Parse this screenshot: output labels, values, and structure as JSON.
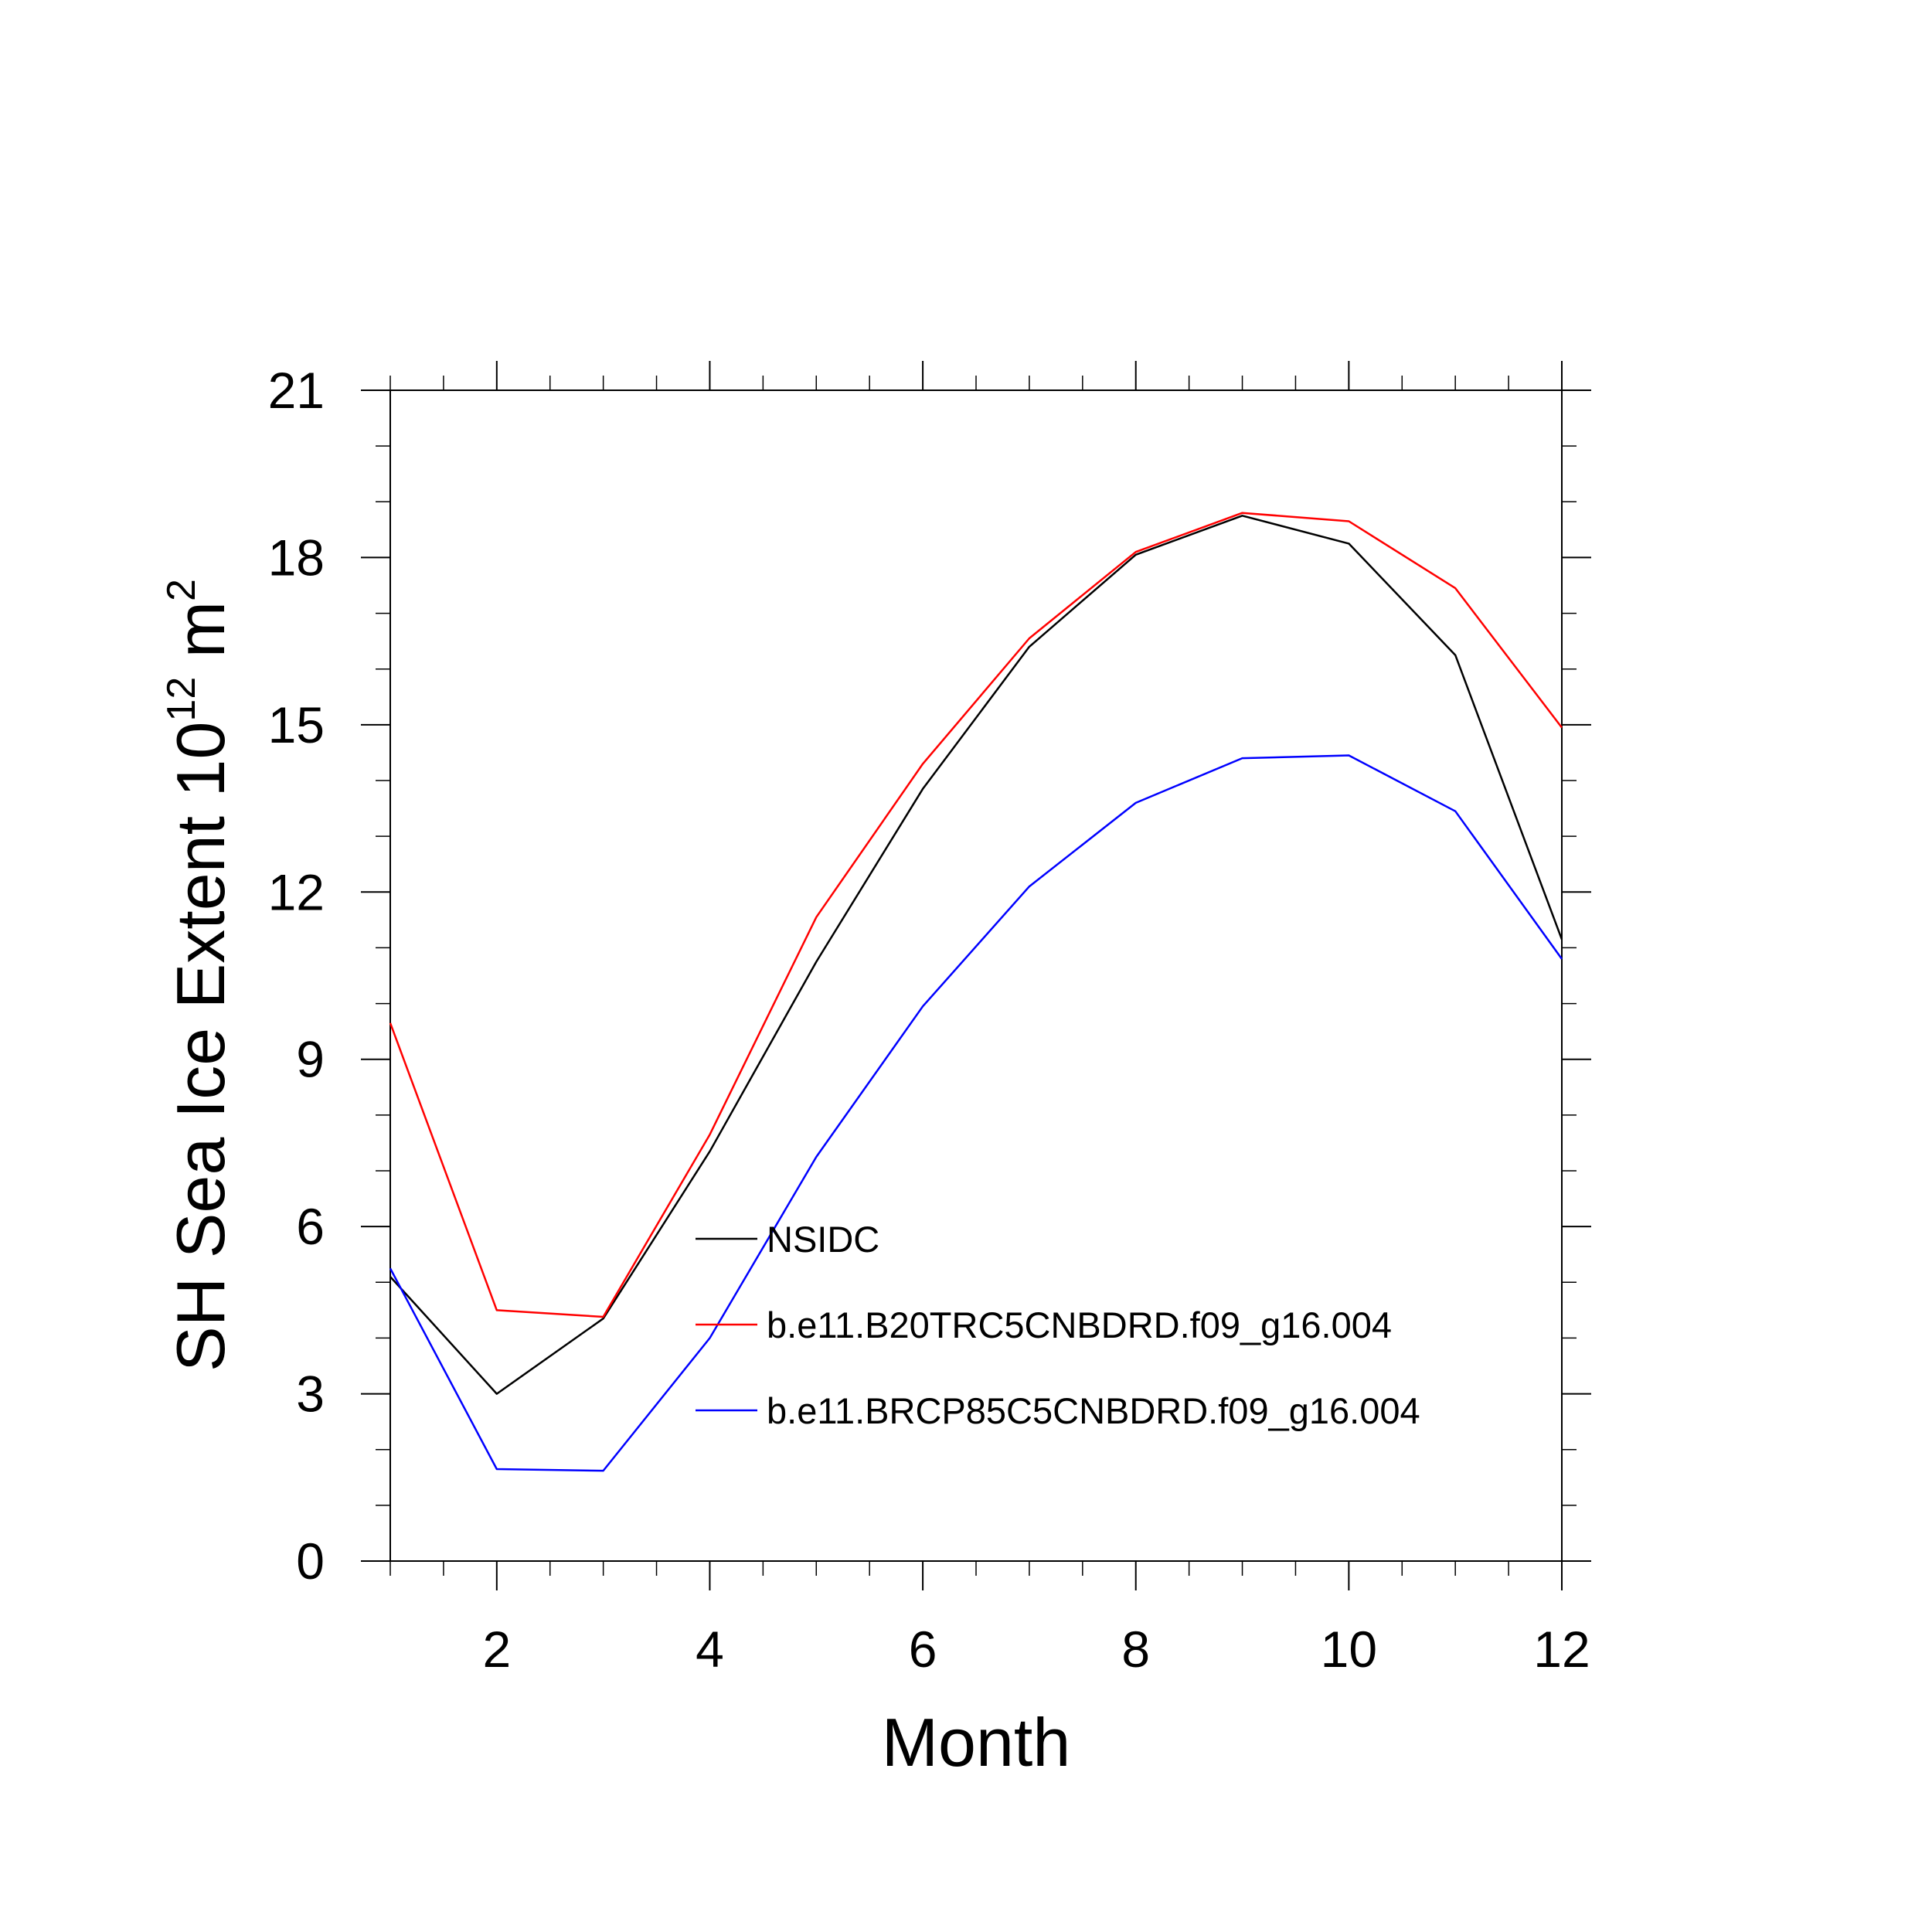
{
  "chart_data": {
    "type": "line",
    "title": "",
    "xlabel": "Month",
    "ylabel": "SH Sea Ice Extent 10",
    "ylabel_sup1": "12",
    "ylabel_unit": " m",
    "ylabel_sup2": "2",
    "xlim": [
      1,
      12
    ],
    "ylim": [
      0,
      21
    ],
    "xticks": [
      2,
      4,
      6,
      8,
      10,
      12
    ],
    "yticks": [
      0,
      3,
      6,
      9,
      12,
      15,
      18,
      21
    ],
    "x": [
      1,
      2,
      3,
      4,
      5,
      6,
      7,
      8,
      9,
      10,
      11,
      12
    ],
    "legend_position": "center",
    "series": [
      {
        "name": "NSIDC",
        "color": "#000000",
        "values": [
          5.1,
          3.0,
          4.35,
          7.35,
          10.75,
          13.85,
          16.4,
          18.05,
          18.75,
          18.25,
          16.25,
          11.15
        ]
      },
      {
        "name": "b.e11.B20TRC5CNBDRD.f09_g16.004",
        "color": "#ff0000",
        "values": [
          9.65,
          4.5,
          4.38,
          7.65,
          11.55,
          14.3,
          16.55,
          18.1,
          18.8,
          18.65,
          17.45,
          14.95
        ]
      },
      {
        "name": "b.e11.BRCP85C5CNBDRD.f09_g16.004",
        "color": "#0000ff",
        "values": [
          5.25,
          1.65,
          1.62,
          4.0,
          7.25,
          9.95,
          12.1,
          13.6,
          14.4,
          14.45,
          13.45,
          10.8
        ]
      }
    ]
  }
}
